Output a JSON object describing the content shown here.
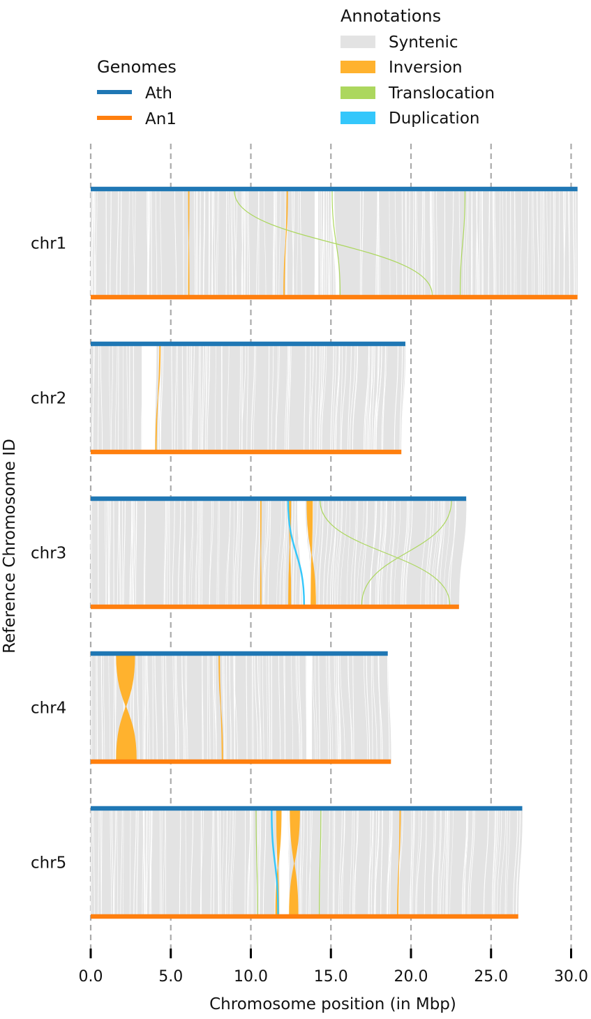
{
  "chart_data": {
    "type": "synteny",
    "xlabel": "Chromosome position (in Mbp)",
    "ylabel": "Reference Chromosome ID",
    "xlim": [
      0,
      30.4
    ],
    "x_ticks": [
      0,
      5,
      10,
      15,
      20,
      25,
      30
    ],
    "x_tick_labels": [
      "0.0",
      "5.0",
      "10.0",
      "15.0",
      "20.0",
      "25.0",
      "30.0"
    ],
    "vertical_gridlines": true,
    "legends": {
      "genomes": {
        "title": "Genomes",
        "placement": "top-left",
        "items": [
          {
            "label": "Ath",
            "color": "#1f77b4"
          },
          {
            "label": "An1",
            "color": "#ff7f0e"
          }
        ]
      },
      "annotations": {
        "title": "Annotations",
        "placement": "top-center",
        "items": [
          {
            "label": "Syntenic",
            "color": "#e3e3e3"
          },
          {
            "label": "Inversion",
            "color": "#ffb22e"
          },
          {
            "label": "Translocation",
            "color": "#acd75e"
          },
          {
            "label": "Duplication",
            "color": "#34c7fb"
          }
        ]
      }
    },
    "colors": {
      "reference": "#1f77b4",
      "query": "#ff7f0e",
      "syntenic": "#e3e3e3",
      "inversion": "#ffb22e",
      "translocation": "#acd75e",
      "duplication": "#34c7fb",
      "grid": "#aaaaaa"
    },
    "chromosomes": [
      {
        "id": "chr1",
        "ref_length": 30.4,
        "qry_length": 30.4,
        "gaps": [
          {
            "ref": [
              14.0,
              14.2
            ],
            "qry": [
              14.0,
              14.2
            ]
          },
          {
            "ref": [
              15.0,
              15.2
            ],
            "qry": [
              15.3,
              15.5
            ]
          }
        ],
        "inversions": [
          {
            "ref": [
              6.1,
              6.15
            ],
            "qry": [
              6.1,
              6.15
            ]
          },
          {
            "ref": [
              12.25,
              12.3
            ],
            "qry": [
              12.05,
              12.1
            ]
          }
        ],
        "translocations": [
          {
            "ref": [
              8.95,
              9.0
            ],
            "qry": [
              21.3,
              21.35
            ]
          },
          {
            "ref": [
              15.05,
              15.1
            ],
            "qry": [
              15.55,
              15.6
            ]
          },
          {
            "ref": [
              23.35,
              23.4
            ],
            "qry": [
              23.05,
              23.1
            ]
          }
        ],
        "duplications": []
      },
      {
        "id": "chr2",
        "ref_length": 19.65,
        "qry_length": 19.4,
        "gaps": [
          {
            "ref": [
              3.2,
              4.1
            ],
            "qry": [
              3.2,
              4.0
            ]
          }
        ],
        "inversions": [
          {
            "ref": [
              4.3,
              4.35
            ],
            "qry": [
              4.05,
              4.1
            ]
          }
        ],
        "translocations": [],
        "duplications": []
      },
      {
        "id": "chr3",
        "ref_length": 23.45,
        "qry_length": 23.0,
        "gaps": [
          {
            "ref": [
              12.9,
              13.4
            ],
            "qry": [
              13.2,
              13.8
            ]
          }
        ],
        "inversions": [
          {
            "ref": [
              10.6,
              10.65
            ],
            "qry": [
              10.6,
              10.65
            ]
          },
          {
            "ref": [
              13.5,
              13.85
            ],
            "qry": [
              13.75,
              14.05
            ]
          },
          {
            "ref": [
              12.4,
              12.5
            ],
            "qry": [
              12.35,
              12.5
            ]
          }
        ],
        "translocations": [
          {
            "ref": [
              14.3,
              14.35
            ],
            "qry": [
              22.4,
              22.45
            ]
          },
          {
            "ref": [
              22.5,
              22.55
            ],
            "qry": [
              16.9,
              16.95
            ]
          }
        ],
        "duplications": [
          {
            "ref": [
              12.3,
              12.35
            ],
            "qry": [
              13.3,
              13.35
            ]
          }
        ]
      },
      {
        "id": "chr4",
        "ref_length": 18.55,
        "qry_length": 18.75,
        "gaps": [
          {
            "ref": [
              13.5,
              13.8
            ],
            "qry": [
              13.5,
              13.8
            ]
          }
        ],
        "inversions": [
          {
            "ref": [
              1.6,
              2.75
            ],
            "qry": [
              1.6,
              2.85
            ]
          },
          {
            "ref": [
              8.0,
              8.05
            ],
            "qry": [
              8.2,
              8.25
            ]
          }
        ],
        "translocations": [],
        "duplications": []
      },
      {
        "id": "chr5",
        "ref_length": 26.95,
        "qry_length": 26.7,
        "gaps": [
          {
            "ref": [
              11.8,
              12.3
            ],
            "qry": [
              11.8,
              12.4
            ]
          }
        ],
        "inversions": [
          {
            "ref": [
              11.6,
              11.9
            ],
            "qry": [
              11.55,
              11.75
            ]
          },
          {
            "ref": [
              12.45,
              13.05
            ],
            "qry": [
              12.4,
              12.95
            ]
          },
          {
            "ref": [
              19.3,
              19.35
            ],
            "qry": [
              19.15,
              19.2
            ]
          }
        ],
        "translocations": [
          {
            "ref": [
              10.3,
              10.35
            ],
            "qry": [
              10.4,
              10.45
            ]
          },
          {
            "ref": [
              14.35,
              14.4
            ],
            "qry": [
              14.25,
              14.3
            ]
          }
        ],
        "duplications": [
          {
            "ref": [
              11.25,
              11.35
            ],
            "qry": [
              11.65,
              11.75
            ]
          }
        ]
      }
    ]
  }
}
